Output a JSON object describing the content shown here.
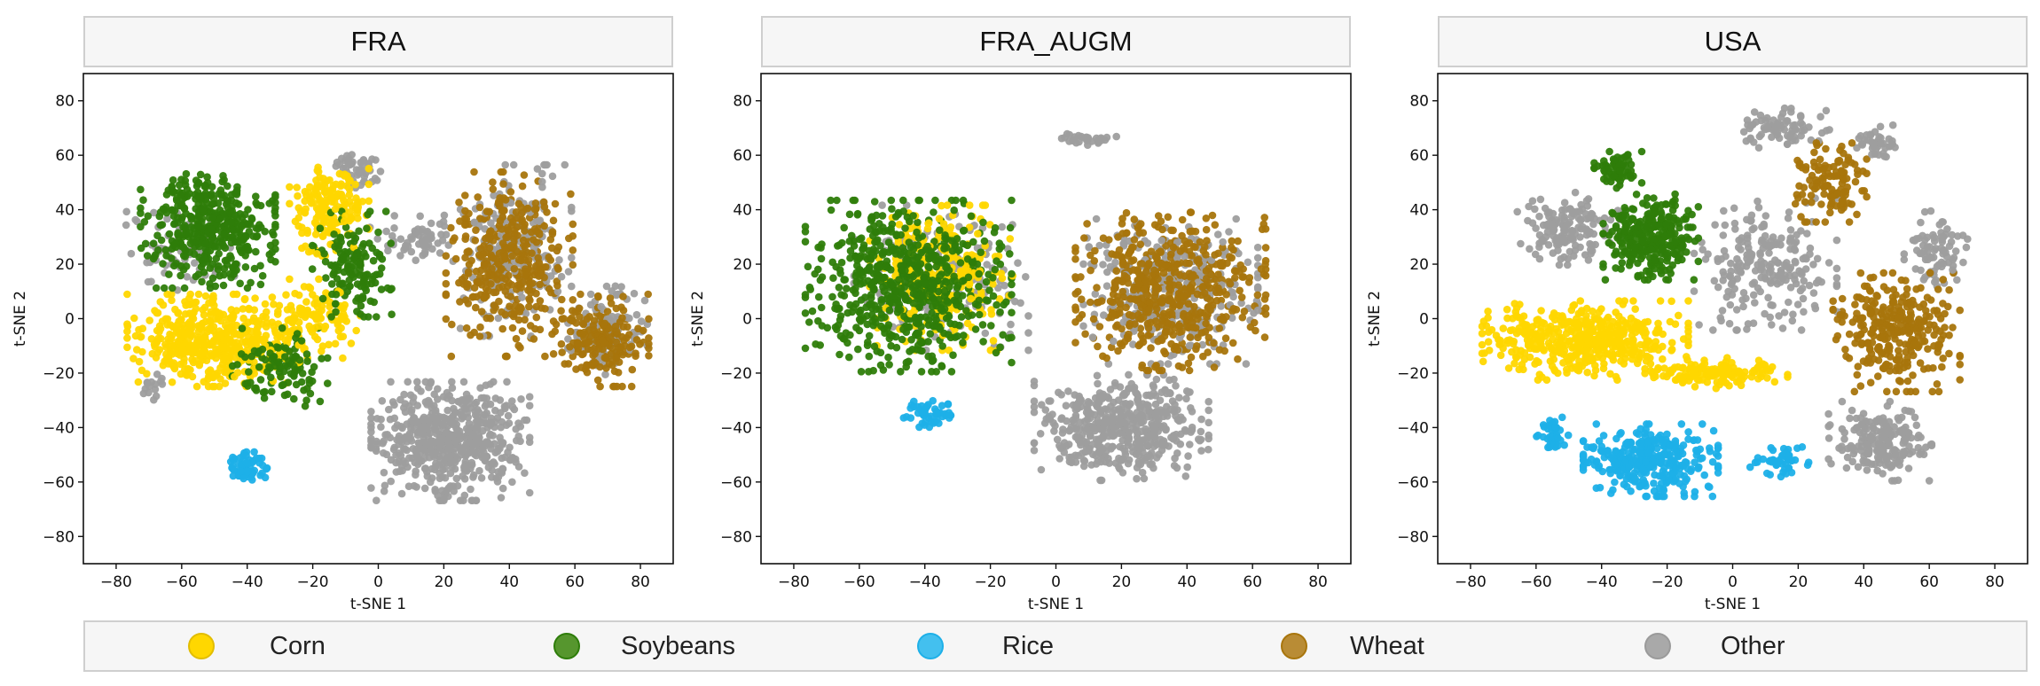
{
  "chart_data": [
    {
      "type": "scatter",
      "title": "FRA",
      "xlabel": "t-SNE 1",
      "ylabel": "t-SNE 2",
      "xlim": [
        -90,
        90
      ],
      "ylim": [
        -90,
        90
      ],
      "xticks": [
        -80,
        -60,
        -40,
        -20,
        0,
        20,
        40,
        60,
        80
      ],
      "yticks": [
        -80,
        -60,
        -40,
        -20,
        0,
        20,
        40,
        60,
        80
      ],
      "grid": false,
      "clusters": [
        {
          "series": "Soybeans",
          "cx": -52,
          "cy": 33,
          "rx": 17,
          "ry": 18,
          "n": 420
        },
        {
          "series": "Soybeans",
          "cx": -8,
          "cy": 20,
          "rx": 10,
          "ry": 16,
          "n": 150
        },
        {
          "series": "Soybeans",
          "cx": -30,
          "cy": -18,
          "rx": 12,
          "ry": 12,
          "n": 110
        },
        {
          "series": "Corn",
          "cx": -50,
          "cy": -8,
          "rx": 22,
          "ry": 14,
          "n": 480
        },
        {
          "series": "Corn",
          "cx": -15,
          "cy": 40,
          "rx": 10,
          "ry": 14,
          "n": 180
        },
        {
          "series": "Corn",
          "cx": -20,
          "cy": 0,
          "rx": 12,
          "ry": 12,
          "n": 120
        },
        {
          "series": "Rice",
          "cx": -40,
          "cy": -55,
          "rx": 5,
          "ry": 5,
          "n": 70
        },
        {
          "series": "Wheat",
          "cx": 40,
          "cy": 20,
          "rx": 16,
          "ry": 28,
          "n": 380
        },
        {
          "series": "Wheat",
          "cx": 68,
          "cy": -8,
          "rx": 12,
          "ry": 14,
          "n": 200
        },
        {
          "series": "Other",
          "cx": 22,
          "cy": -45,
          "rx": 20,
          "ry": 18,
          "n": 560
        },
        {
          "series": "Other",
          "cx": 42,
          "cy": 25,
          "rx": 14,
          "ry": 26,
          "n": 200
        },
        {
          "series": "Other",
          "cx": 70,
          "cy": -5,
          "rx": 10,
          "ry": 14,
          "n": 110
        },
        {
          "series": "Other",
          "cx": -8,
          "cy": 55,
          "rx": 8,
          "ry": 6,
          "n": 50
        },
        {
          "series": "Other",
          "cx": 12,
          "cy": 30,
          "rx": 12,
          "ry": 8,
          "n": 60
        },
        {
          "series": "Other",
          "cx": -60,
          "cy": 25,
          "rx": 14,
          "ry": 12,
          "n": 80
        },
        {
          "series": "Other",
          "cx": -70,
          "cy": -25,
          "rx": 4,
          "ry": 4,
          "n": 15
        }
      ]
    },
    {
      "type": "scatter",
      "title": "FRA_AUGM",
      "xlabel": "t-SNE 1",
      "ylabel": "t-SNE 2",
      "xlim": [
        -90,
        90
      ],
      "ylim": [
        -90,
        90
      ],
      "xticks": [
        -80,
        -60,
        -40,
        -20,
        0,
        20,
        40,
        60,
        80
      ],
      "yticks": [
        -80,
        -60,
        -40,
        -20,
        0,
        20,
        40,
        60,
        80
      ],
      "grid": false,
      "clusters": [
        {
          "series": "Soybeans",
          "cx": -45,
          "cy": 12,
          "rx": 26,
          "ry": 26,
          "n": 650
        },
        {
          "series": "Corn",
          "cx": -35,
          "cy": 15,
          "rx": 18,
          "ry": 22,
          "n": 260
        },
        {
          "series": "Rice",
          "cx": -38,
          "cy": -35,
          "rx": 7,
          "ry": 4,
          "n": 50
        },
        {
          "series": "Wheat",
          "cx": 35,
          "cy": 10,
          "rx": 24,
          "ry": 24,
          "n": 550
        },
        {
          "series": "Other",
          "cx": 20,
          "cy": -40,
          "rx": 22,
          "ry": 16,
          "n": 480
        },
        {
          "series": "Other",
          "cx": 35,
          "cy": 10,
          "rx": 22,
          "ry": 22,
          "n": 320
        },
        {
          "series": "Other",
          "cx": -35,
          "cy": 15,
          "rx": 22,
          "ry": 22,
          "n": 160
        },
        {
          "series": "Other",
          "cx": 10,
          "cy": 66,
          "rx": 7,
          "ry": 2,
          "n": 30
        }
      ]
    },
    {
      "type": "scatter",
      "title": "USA",
      "xlabel": "t-SNE 1",
      "ylabel": "t-SNE 2",
      "xlim": [
        -90,
        90
      ],
      "ylim": [
        -90,
        90
      ],
      "xticks": [
        -80,
        -60,
        -40,
        -20,
        0,
        20,
        40,
        60,
        80
      ],
      "yticks": [
        -80,
        -60,
        -40,
        -20,
        0,
        20,
        40,
        60,
        80
      ],
      "grid": false,
      "clusters": [
        {
          "series": "Soybeans",
          "cx": -25,
          "cy": 30,
          "rx": 12,
          "ry": 13,
          "n": 300
        },
        {
          "series": "Soybeans",
          "cx": -35,
          "cy": 55,
          "rx": 6,
          "ry": 6,
          "n": 70
        },
        {
          "series": "Corn",
          "cx": -45,
          "cy": -8,
          "rx": 26,
          "ry": 12,
          "n": 480
        },
        {
          "series": "Corn",
          "cx": -5,
          "cy": -20,
          "rx": 18,
          "ry": 5,
          "n": 140
        },
        {
          "series": "Rice",
          "cx": -25,
          "cy": -52,
          "rx": 17,
          "ry": 11,
          "n": 340
        },
        {
          "series": "Rice",
          "cx": -55,
          "cy": -42,
          "rx": 4,
          "ry": 5,
          "n": 40
        },
        {
          "series": "Rice",
          "cx": 15,
          "cy": -52,
          "rx": 8,
          "ry": 5,
          "n": 50
        },
        {
          "series": "Wheat",
          "cx": 50,
          "cy": -5,
          "rx": 16,
          "ry": 18,
          "n": 300
        },
        {
          "series": "Wheat",
          "cx": 30,
          "cy": 50,
          "rx": 9,
          "ry": 12,
          "n": 120
        },
        {
          "series": "Other",
          "cx": 45,
          "cy": -45,
          "rx": 13,
          "ry": 12,
          "n": 200
        },
        {
          "series": "Other",
          "cx": -50,
          "cy": 33,
          "rx": 13,
          "ry": 11,
          "n": 150
        },
        {
          "series": "Other",
          "cx": 10,
          "cy": 20,
          "rx": 18,
          "ry": 20,
          "n": 220
        },
        {
          "series": "Other",
          "cx": 15,
          "cy": 70,
          "rx": 12,
          "ry": 6,
          "n": 80
        },
        {
          "series": "Other",
          "cx": 62,
          "cy": 25,
          "rx": 8,
          "ry": 12,
          "n": 80
        },
        {
          "series": "Other",
          "cx": 45,
          "cy": 65,
          "rx": 6,
          "ry": 5,
          "n": 40
        }
      ]
    }
  ],
  "legend": {
    "placement": "bottom",
    "items": [
      {
        "name": "Corn",
        "color": "#FFD700"
      },
      {
        "name": "Soybeans",
        "color": "#2E7D0A"
      },
      {
        "name": "Rice",
        "color": "#1EB0E8"
      },
      {
        "name": "Wheat",
        "color": "#A8750C"
      },
      {
        "name": "Other",
        "color": "#9E9E9E"
      }
    ]
  }
}
